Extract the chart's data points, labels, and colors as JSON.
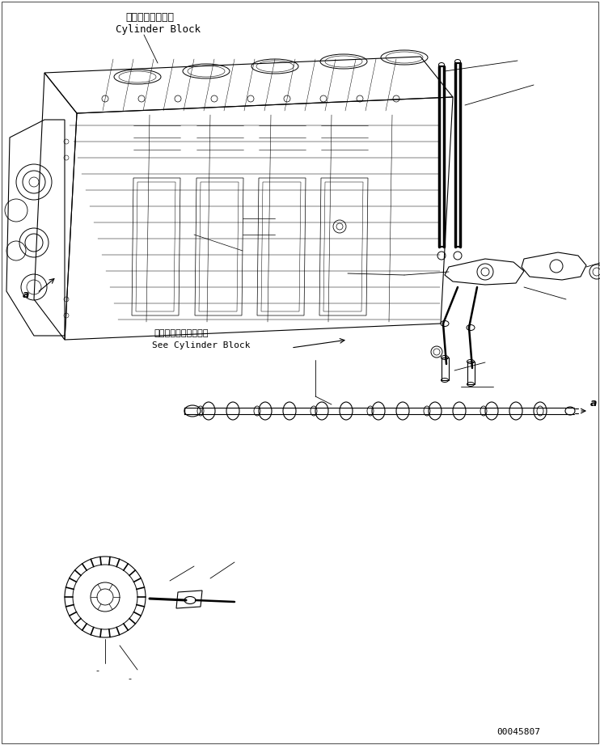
{
  "background_color": "#ffffff",
  "line_color": "#000000",
  "text_color": "#000000",
  "fig_width": 7.42,
  "fig_height": 9.21,
  "dpi": 100,
  "title_jp": "シリンダブロック",
  "title_en": "Cylinder Block",
  "label_jp2": "シリンダブロック参照",
  "label_en2": "See Cylinder Block",
  "label_a1": "a",
  "label_a2": "a",
  "part_number": "00045807",
  "font_size_title": 9,
  "font_size_label": 8,
  "font_size_part": 8
}
